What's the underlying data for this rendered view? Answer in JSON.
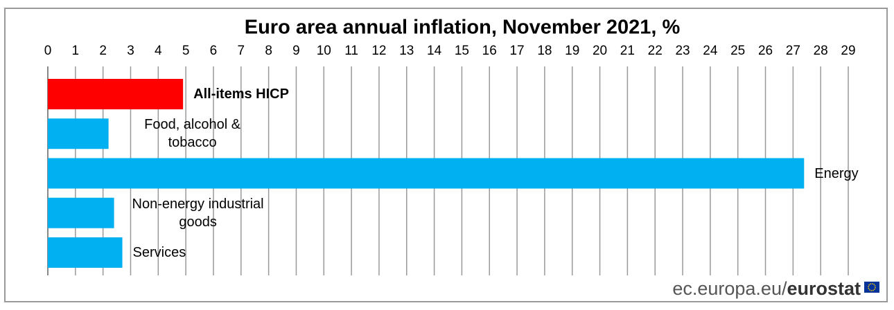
{
  "chart_data": {
    "type": "hbar",
    "title": "Euro area annual inflation, November 2021, %",
    "categories": [
      "All-items HICP",
      "Food, alcohol & tobacco",
      "Energy",
      "Non-energy industrial goods",
      "Services"
    ],
    "values": [
      4.9,
      2.2,
      27.4,
      2.4,
      2.7
    ],
    "colors": [
      "#ff0000",
      "#00b0f0",
      "#00b0f0",
      "#00b0f0",
      "#00b0f0"
    ],
    "xlim": [
      0,
      29
    ],
    "xticks": [
      0,
      1,
      2,
      3,
      4,
      5,
      6,
      7,
      8,
      9,
      10,
      11,
      12,
      13,
      14,
      15,
      16,
      17,
      18,
      19,
      20,
      21,
      22,
      23,
      24,
      25,
      26,
      27,
      28,
      29
    ],
    "grid": true
  },
  "source": {
    "site": "ec.europa.eu/",
    "brand": "eurostat"
  }
}
